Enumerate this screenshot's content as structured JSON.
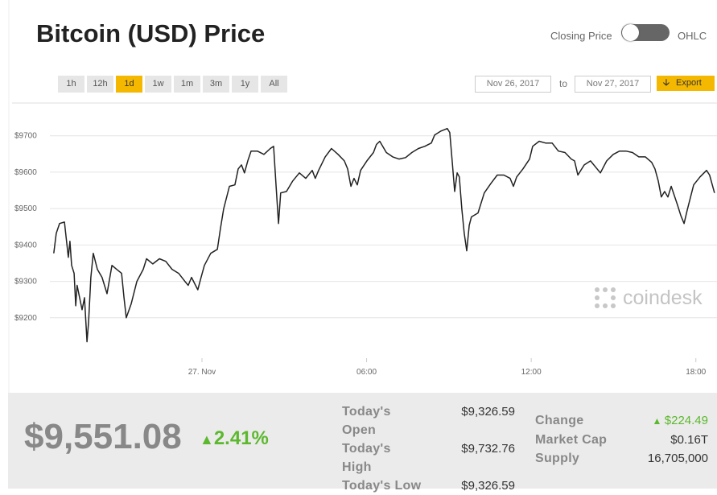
{
  "header": {
    "title": "Bitcoin (USD) Price",
    "toggle_left": "Closing Price",
    "toggle_right": "OHLC"
  },
  "ranges": {
    "options": [
      "1h",
      "12h",
      "1d",
      "1w",
      "1m",
      "3m",
      "1y",
      "All"
    ],
    "selected": "1d"
  },
  "dates": {
    "from": "Nov 26, 2017",
    "separator": "to",
    "to": "Nov 27, 2017",
    "export": "Export"
  },
  "chart_data": {
    "type": "line",
    "color": "#222222",
    "watermark": "coindesk",
    "grid": true,
    "xlim": [
      17.08,
      42.77
    ],
    "xticks": [
      {
        "value": 24,
        "label": "27. Nov"
      },
      {
        "value": 30,
        "label": "06:00"
      },
      {
        "value": 36,
        "label": "12:00"
      },
      {
        "value": 42,
        "label": "18:00"
      }
    ],
    "ylim": [
      9100,
      9790
    ],
    "yticks": [
      {
        "value": 9200,
        "label": "$9200"
      },
      {
        "value": 9300,
        "label": "$9300"
      },
      {
        "value": 9400,
        "label": "$9400"
      },
      {
        "value": 9500,
        "label": "$9500"
      },
      {
        "value": 9600,
        "label": "$9600"
      },
      {
        "value": 9700,
        "label": "$9700"
      }
    ],
    "x": [
      18.6,
      18.69,
      18.81,
      18.99,
      19.13,
      19.19,
      19.25,
      19.34,
      19.4,
      19.45,
      19.63,
      19.72,
      19.81,
      19.87,
      19.95,
      20.04,
      20.19,
      20.36,
      20.54,
      20.72,
      20.89,
      21.07,
      21.16,
      21.24,
      21.42,
      21.63,
      21.86,
      21.98,
      22.21,
      22.45,
      22.68,
      22.91,
      23.15,
      23.38,
      23.5,
      23.62,
      23.85,
      23.97,
      24.09,
      24.32,
      24.56,
      24.67,
      24.79,
      25.0,
      25.2,
      25.32,
      25.44,
      25.55,
      25.67,
      25.79,
      26.02,
      26.26,
      26.49,
      26.61,
      26.7,
      26.79,
      26.87,
      27.08,
      27.31,
      27.55,
      27.78,
      28.02,
      28.13,
      28.25,
      28.49,
      28.72,
      28.96,
      29.19,
      29.31,
      29.43,
      29.54,
      29.66,
      29.78,
      30.01,
      30.25,
      30.36,
      30.48,
      30.72,
      30.95,
      31.18,
      31.42,
      31.65,
      31.89,
      32.12,
      32.36,
      32.48,
      32.71,
      32.94,
      33.03,
      33.12,
      33.21,
      33.3,
      33.38,
      33.47,
      33.56,
      33.65,
      33.74,
      33.82,
      34.06,
      34.29,
      34.53,
      34.76,
      35.0,
      35.23,
      35.35,
      35.47,
      35.7,
      35.94,
      36.05,
      36.29,
      36.52,
      36.76,
      36.99,
      37.23,
      37.46,
      37.58,
      37.7,
      37.93,
      38.16,
      38.4,
      38.52,
      38.75,
      38.99,
      39.22,
      39.45,
      39.69,
      39.92,
      40.16,
      40.39,
      40.51,
      40.63,
      40.74,
      40.86,
      40.98,
      41.1,
      41.33,
      41.45,
      41.57,
      41.68,
      41.92,
      42.15,
      42.39,
      42.5,
      42.68
    ],
    "values": [
      9377,
      9432,
      9459,
      9463,
      9366,
      9410,
      9344,
      9322,
      9233,
      9289,
      9222,
      9255,
      9134,
      9189,
      9311,
      9377,
      9333,
      9311,
      9266,
      9344,
      9333,
      9322,
      9255,
      9200,
      9238,
      9300,
      9333,
      9362,
      9348,
      9362,
      9355,
      9333,
      9322,
      9300,
      9289,
      9311,
      9277,
      9311,
      9344,
      9377,
      9388,
      9443,
      9499,
      9561,
      9565,
      9609,
      9620,
      9598,
      9631,
      9658,
      9658,
      9649,
      9665,
      9671,
      9565,
      9459,
      9543,
      9547,
      9576,
      9598,
      9583,
      9605,
      9583,
      9605,
      9642,
      9665,
      9649,
      9631,
      9609,
      9561,
      9583,
      9565,
      9605,
      9631,
      9654,
      9676,
      9685,
      9654,
      9642,
      9636,
      9640,
      9654,
      9665,
      9671,
      9680,
      9702,
      9713,
      9720,
      9709,
      9631,
      9547,
      9598,
      9587,
      9499,
      9432,
      9384,
      9454,
      9477,
      9488,
      9543,
      9569,
      9592,
      9592,
      9583,
      9561,
      9587,
      9609,
      9636,
      9671,
      9685,
      9680,
      9680,
      9658,
      9654,
      9636,
      9631,
      9592,
      9620,
      9631,
      9609,
      9598,
      9631,
      9649,
      9658,
      9658,
      9654,
      9642,
      9642,
      9627,
      9609,
      9576,
      9532,
      9547,
      9532,
      9561,
      9510,
      9481,
      9459,
      9494,
      9565,
      9587,
      9605,
      9592,
      9543
    ]
  },
  "summary": {
    "price": "$9,551.08",
    "change_pct": "2.41%",
    "stats_left": [
      {
        "label": "Today's Open",
        "value": "$9,326.59"
      },
      {
        "label": "Today's High",
        "value": "$9,732.76"
      },
      {
        "label": "Today's Low",
        "value": "$9,326.59"
      }
    ],
    "stats_right": [
      {
        "label": "Change",
        "value": "$224.49"
      },
      {
        "label": "Market Cap",
        "value": "$0.16T"
      },
      {
        "label": "Supply",
        "value": "16,705,000"
      }
    ]
  }
}
